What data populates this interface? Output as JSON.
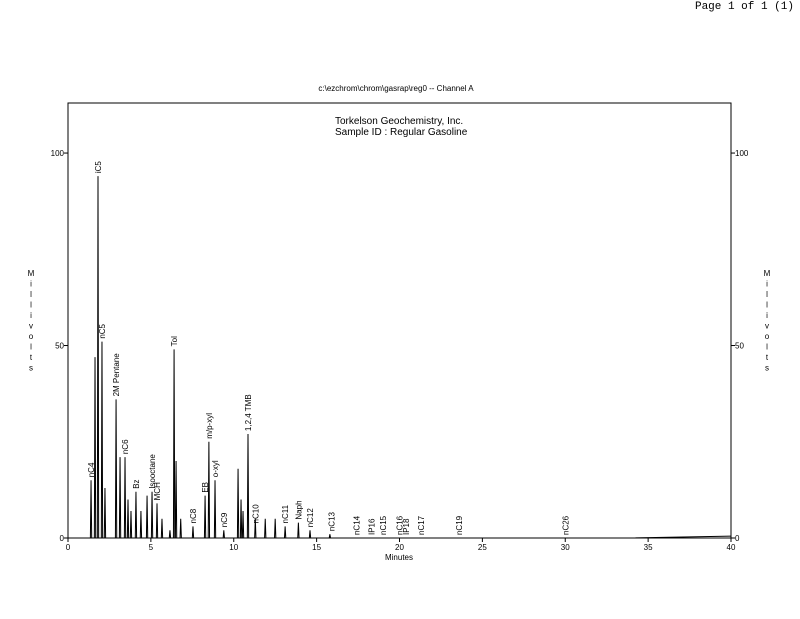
{
  "chart_data": {
    "type": "line",
    "page_label": "Page 1 of 1 (1)",
    "file_title": "c:\\ezchrom\\chrom\\gasrap\\reg0 -- Channel A",
    "title": "Torkelson Geochemistry, Inc.",
    "subtitle": "Sample ID  :  Regular Gasoline",
    "x_label": "Minutes",
    "y_label": "Millivolts",
    "xlim": [
      0,
      40
    ],
    "xticks": [
      0,
      5,
      10,
      15,
      20,
      25,
      30,
      35,
      40
    ],
    "ylim": [
      0,
      113
    ],
    "yticks": [
      0,
      50,
      100
    ],
    "color": "#000000",
    "x": [
      0,
      1.35,
      1.39,
      1.43,
      1.59,
      1.63,
      1.67,
      1.77,
      1.81,
      1.85,
      2.01,
      2.05,
      2.09,
      2.19,
      2.23,
      2.27,
      2.86,
      2.9,
      2.94,
      3.1,
      3.14,
      3.18,
      3.4,
      3.44,
      3.48,
      3.58,
      3.62,
      3.66,
      3.76,
      3.8,
      3.84,
      4.06,
      4.1,
      4.14,
      4.36,
      4.4,
      4.44,
      4.73,
      4.77,
      4.81,
      5.03,
      5.07,
      5.11,
      5.33,
      5.37,
      5.41,
      5.63,
      5.67,
      5.71,
      6.11,
      6.15,
      6.19,
      6.36,
      6.4,
      6.44,
      6.48,
      6.52,
      6.56,
      6.76,
      6.8,
      6.84,
      7.5,
      7.54,
      7.58,
      8.23,
      8.27,
      8.31,
      8.46,
      8.5,
      8.54,
      8.83,
      8.87,
      8.91,
      9.36,
      9.4,
      9.44,
      10.22,
      10.26,
      10.3,
      10.4,
      10.44,
      10.48,
      10.52,
      10.56,
      10.6,
      10.82,
      10.86,
      10.9,
      11.26,
      11.3,
      11.34,
      11.86,
      11.9,
      11.94,
      12.46,
      12.5,
      12.54,
      13.06,
      13.1,
      13.14,
      13.86,
      13.9,
      13.94,
      14.56,
      14.6,
      14.64,
      15.76,
      15.8,
      15.84,
      34,
      40
    ],
    "values": [
      0,
      0,
      15,
      0,
      0,
      47,
      0,
      0,
      94,
      0,
      0,
      51,
      0,
      0,
      13,
      0,
      0,
      36,
      0,
      0,
      21,
      0,
      0,
      21,
      0,
      0,
      10,
      0,
      0,
      7,
      0,
      0,
      12,
      0,
      0,
      7,
      0,
      0,
      11,
      0,
      0,
      12,
      0,
      0,
      9,
      0,
      0,
      5,
      0,
      0,
      2,
      0,
      0,
      49,
      0,
      0,
      20,
      0,
      0,
      5,
      0,
      0,
      3,
      0,
      0,
      11,
      0,
      0,
      25,
      0,
      0,
      15,
      0,
      0,
      2,
      0,
      0,
      18,
      0,
      0,
      10,
      0,
      0,
      7,
      0,
      0,
      27,
      0,
      0,
      5,
      0,
      0,
      5,
      0,
      0,
      5,
      0,
      0,
      3,
      0,
      0,
      4,
      0,
      0,
      2,
      0,
      0,
      1,
      0,
      0,
      0.5
    ],
    "annotations": [
      {
        "text": "nC4",
        "x": 1.39,
        "y": 15
      },
      {
        "text": "iC5",
        "x": 1.81,
        "y": 94
      },
      {
        "text": "nC5",
        "x": 2.05,
        "y": 51
      },
      {
        "text": "2M Pentane",
        "x": 2.9,
        "y": 36
      },
      {
        "text": "nC6",
        "x": 3.44,
        "y": 21
      },
      {
        "text": "Bz",
        "x": 4.1,
        "y": 12
      },
      {
        "text": "Isooctane",
        "x": 5.07,
        "y": 12
      },
      {
        "text": "MCH",
        "x": 5.37,
        "y": 9
      },
      {
        "text": "Tol",
        "x": 6.4,
        "y": 49
      },
      {
        "text": "nC8",
        "x": 7.54,
        "y": 3
      },
      {
        "text": "EB",
        "x": 8.27,
        "y": 11
      },
      {
        "text": "m/p-xyl",
        "x": 8.5,
        "y": 25
      },
      {
        "text": "o-xyl",
        "x": 8.87,
        "y": 15
      },
      {
        "text": "nC9",
        "x": 9.4,
        "y": 2
      },
      {
        "text": "1,2,4 TMB",
        "x": 10.86,
        "y": 27
      },
      {
        "text": "nC10",
        "x": 11.3,
        "y": 3
      },
      {
        "text": "nC11",
        "x": 13.1,
        "y": 3
      },
      {
        "text": "Naph",
        "x": 13.9,
        "y": 4
      },
      {
        "text": "nC12",
        "x": 14.6,
        "y": 2
      },
      {
        "text": "nC13",
        "x": 15.9,
        "y": 1
      },
      {
        "text": "nC14",
        "x": 17.4,
        "y": 0
      },
      {
        "text": "IP16",
        "x": 18.3,
        "y": 0
      },
      {
        "text": "nC15",
        "x": 19,
        "y": 0
      },
      {
        "text": "nC16",
        "x": 20,
        "y": 0
      },
      {
        "text": "IP18",
        "x": 20.4,
        "y": 0
      },
      {
        "text": "nC17",
        "x": 21.3,
        "y": 0
      },
      {
        "text": "nC19",
        "x": 23.6,
        "y": 0
      },
      {
        "text": "nC26",
        "x": 30,
        "y": 0
      }
    ]
  }
}
